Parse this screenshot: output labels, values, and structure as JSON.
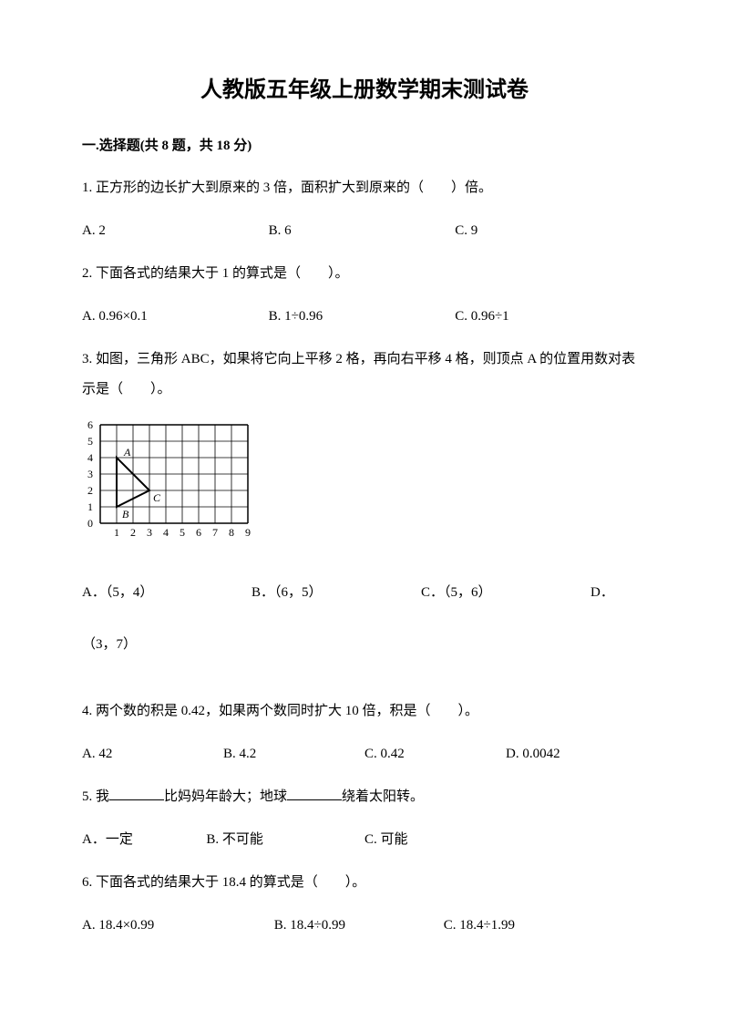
{
  "title": "人教版五年级上册数学期末测试卷",
  "section": {
    "label": "一.选择题(共 8 题，共 18 分)"
  },
  "q1": {
    "text": "1. 正方形的边长扩大到原来的 3 倍，面积扩大到原来的（　　）倍。",
    "a": "A. 2",
    "b": "B. 6",
    "c": "C. 9"
  },
  "q2": {
    "text": "2. 下面各式的结果大于 1 的算式是（　　）。",
    "a": "A. 0.96×0.1",
    "b": "B. 1÷0.96",
    "c": "C. 0.96÷1"
  },
  "q3": {
    "text": "3. 如图，三角形 ABC，如果将它向上平移 2 格，再向右平移 4 格，则顶点 A 的位置用数对表示是（　　）。",
    "a": "A．（5，4）",
    "b": "B．（6，5）",
    "c": "C．（5，6）",
    "d": "D．",
    "d2": "（3，7）",
    "figure": {
      "grid_cols": 9,
      "grid_rows": 6,
      "x_labels": [
        "1",
        "2",
        "3",
        "4",
        "5",
        "6",
        "7",
        "8",
        "9"
      ],
      "y_labels": [
        "0",
        "1",
        "2",
        "3",
        "4",
        "5",
        "6"
      ],
      "triangle": {
        "A": [
          1,
          4
        ],
        "B": [
          1,
          1
        ],
        "C": [
          3,
          2
        ]
      },
      "label_A": "A",
      "label_B": "B",
      "label_C": "C",
      "line_color": "#000000",
      "grid_color": "#000000",
      "cell": 18
    }
  },
  "q4": {
    "text": "4. 两个数的积是 0.42，如果两个数同时扩大 10 倍，积是（　　）。",
    "a": "A. 42",
    "b": "B. 4.2",
    "c": "C. 0.42",
    "d": "D. 0.0042"
  },
  "q5": {
    "pre": "5. 我",
    "mid": "比妈妈年龄大；地球",
    "post": "绕着太阳转。",
    "a": "A．一定",
    "b": "B. 不可能",
    "c": "C. 可能"
  },
  "q6": {
    "text": "6. 下面各式的结果大于 18.4 的算式是（　　）。",
    "a": "A. 18.4×0.99",
    "b": "B. 18.4÷0.99",
    "c": "C. 18.4÷1.99"
  }
}
